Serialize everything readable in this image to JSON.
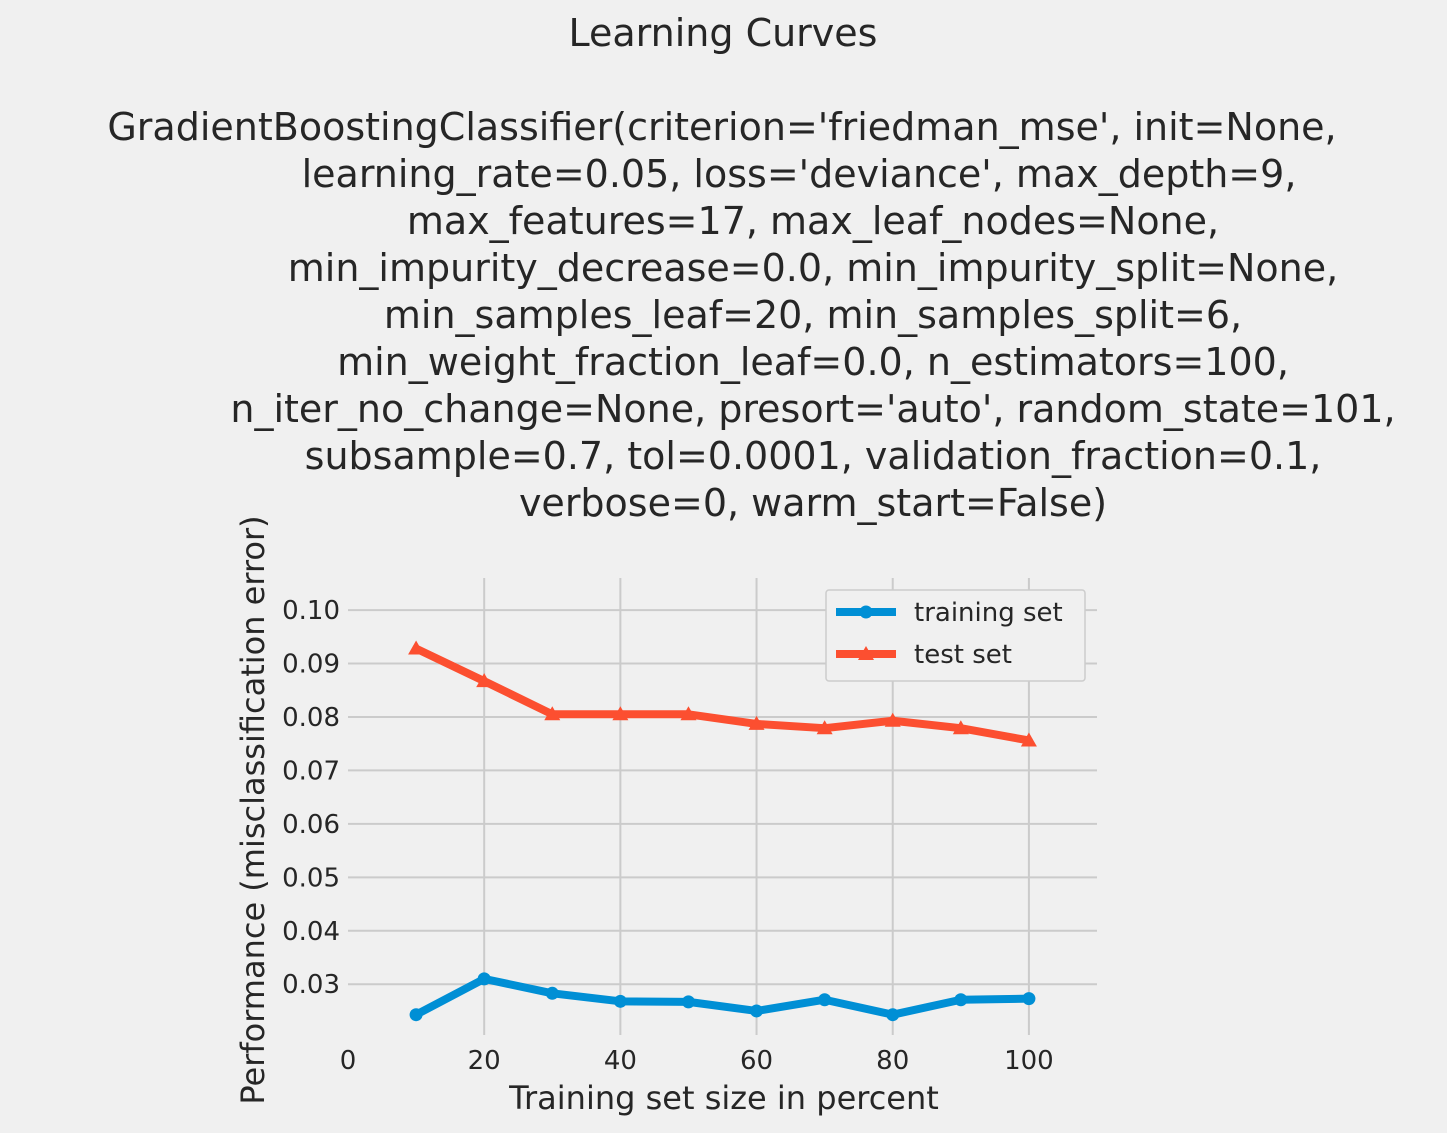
{
  "chart_data": {
    "type": "line",
    "title": "Learning Curves",
    "subtitle_lines": [
      "GradientBoostingClassifier(criterion='friedman_mse', init=None,",
      "learning_rate=0.05, loss='deviance', max_depth=9,",
      "max_features=17, max_leaf_nodes=None,",
      "min_impurity_decrease=0.0, min_impurity_split=None,",
      "min_samples_leaf=20, min_samples_split=6,",
      "min_weight_fraction_leaf=0.0, n_estimators=100,",
      "n_iter_no_change=None, presort='auto', random_state=101,",
      "subsample=0.7, tol=0.0001, validation_fraction=0.1,",
      "verbose=0, warm_start=False)"
    ],
    "xlabel": "Training set size in percent",
    "ylabel": "Performance (misclassification error)",
    "x": [
      10,
      20,
      30,
      40,
      50,
      60,
      70,
      80,
      90,
      100
    ],
    "xlim": [
      0,
      110
    ],
    "ylim": [
      0.0205,
      0.106
    ],
    "xticks": [
      0,
      20,
      40,
      60,
      80,
      100
    ],
    "xtick_labels": [
      "0",
      "20",
      "40",
      "60",
      "80",
      "100"
    ],
    "yticks": [
      0.03,
      0.04,
      0.05,
      0.06,
      0.07,
      0.08,
      0.09,
      0.1
    ],
    "ytick_labels": [
      "0.03",
      "0.04",
      "0.05",
      "0.06",
      "0.07",
      "0.08",
      "0.09",
      "0.10"
    ],
    "grid": true,
    "legend_position": "top-right",
    "series": [
      {
        "name": "training set",
        "marker": "circle",
        "color": "#008fd5",
        "values": [
          0.0243,
          0.031,
          0.0283,
          0.0268,
          0.0267,
          0.025,
          0.0271,
          0.0243,
          0.0271,
          0.0273
        ]
      },
      {
        "name": "test set",
        "marker": "triangle",
        "color": "#fc4f30",
        "values": [
          0.0928,
          0.0867,
          0.0805,
          0.0805,
          0.0805,
          0.0787,
          0.0779,
          0.0793,
          0.0779,
          0.0756
        ]
      }
    ]
  }
}
